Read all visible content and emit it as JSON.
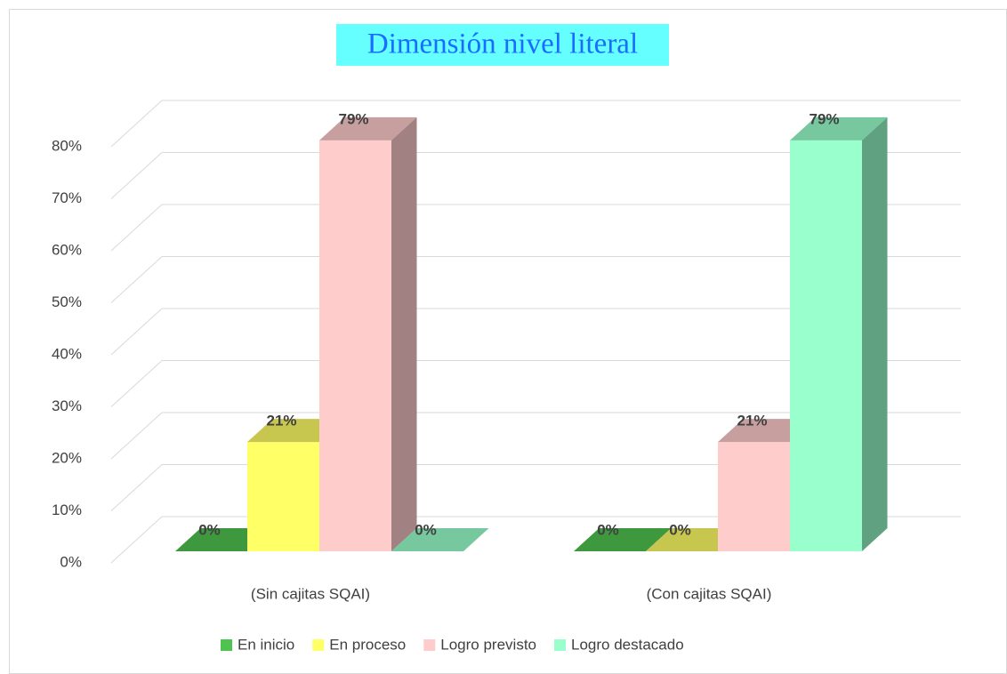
{
  "chart_data": {
    "type": "bar3d",
    "title": "Dimensión nivel literal",
    "categories": [
      "(Sin cajitas SQAI)",
      "(Con cajitas SQAI)"
    ],
    "series": [
      {
        "name": "En inicio",
        "color": "#4fc34f",
        "values": [
          0,
          0
        ],
        "value_labels": [
          "0%",
          "0%"
        ]
      },
      {
        "name": "En proceso",
        "color": "#ffff66",
        "values": [
          21,
          0
        ],
        "value_labels": [
          "21%",
          "0%"
        ]
      },
      {
        "name": "Logro previsto",
        "color": "#ffcccc",
        "values": [
          79,
          21
        ],
        "value_labels": [
          "79%",
          "21%"
        ]
      },
      {
        "name": "Logro destacado",
        "color": "#99ffcc",
        "values": [
          0,
          79
        ],
        "value_labels": [
          "0%",
          "79%"
        ]
      }
    ],
    "ylim": [
      0,
      80
    ],
    "yticks": [
      {
        "value": 0,
        "label": "0%"
      },
      {
        "value": 10,
        "label": "10%"
      },
      {
        "value": 20,
        "label": "20%"
      },
      {
        "value": 30,
        "label": "30%"
      },
      {
        "value": 40,
        "label": "40%"
      },
      {
        "value": 50,
        "label": "50%"
      },
      {
        "value": 60,
        "label": "60%"
      },
      {
        "value": 70,
        "label": "70%"
      },
      {
        "value": 80,
        "label": "80%"
      }
    ],
    "grid": true,
    "legend": "bottom"
  }
}
